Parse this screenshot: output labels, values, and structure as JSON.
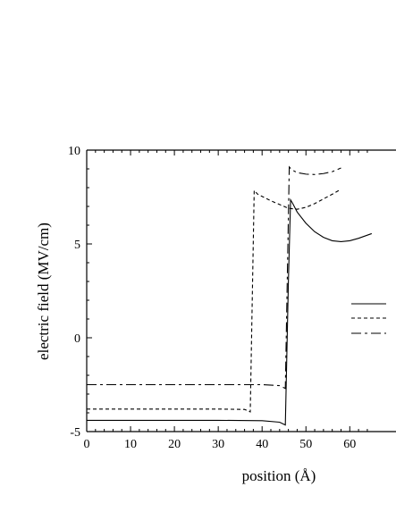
{
  "chart_data": {
    "type": "line",
    "xlabel": "position (Å)",
    "ylabel": "electric field (MV/cm)",
    "xlim": [
      0,
      65
    ],
    "ylim": [
      -5,
      10
    ],
    "x_ticks": [
      0,
      10,
      20,
      30,
      40,
      50,
      60
    ],
    "y_ticks": [
      -5,
      0,
      5,
      10
    ],
    "legend_position": "right",
    "grid": false,
    "series": [
      {
        "style": "solid",
        "x": [
          0,
          10,
          20,
          30,
          40,
          44,
          45.3,
          46.0,
          46.5,
          47,
          48,
          50,
          52,
          54,
          56,
          58,
          60,
          62,
          65
        ],
        "y": [
          -4.4,
          -4.4,
          -4.4,
          -4.4,
          -4.42,
          -4.5,
          -4.65,
          3.0,
          7.35,
          7.15,
          6.7,
          6.1,
          5.65,
          5.35,
          5.17,
          5.12,
          5.17,
          5.3,
          5.55
        ]
      },
      {
        "style": "dotted",
        "x": [
          0,
          10,
          20,
          30,
          36,
          37.3,
          38.2,
          39,
          42,
          44,
          46,
          48,
          50,
          52,
          54,
          56,
          57.5
        ],
        "y": [
          -3.8,
          -3.8,
          -3.8,
          -3.8,
          -3.82,
          -3.95,
          7.85,
          7.65,
          7.3,
          7.1,
          6.9,
          6.85,
          6.95,
          7.15,
          7.4,
          7.65,
          7.85
        ]
      },
      {
        "style": "dash-dot",
        "x": [
          0,
          10,
          20,
          30,
          40,
          44,
          45.3,
          46.2,
          46.8,
          48,
          50,
          52,
          54,
          56,
          58
        ],
        "y": [
          -2.5,
          -2.5,
          -2.5,
          -2.5,
          -2.5,
          -2.55,
          -2.7,
          9.1,
          8.95,
          8.8,
          8.72,
          8.7,
          8.75,
          8.85,
          9.05
        ]
      }
    ]
  }
}
